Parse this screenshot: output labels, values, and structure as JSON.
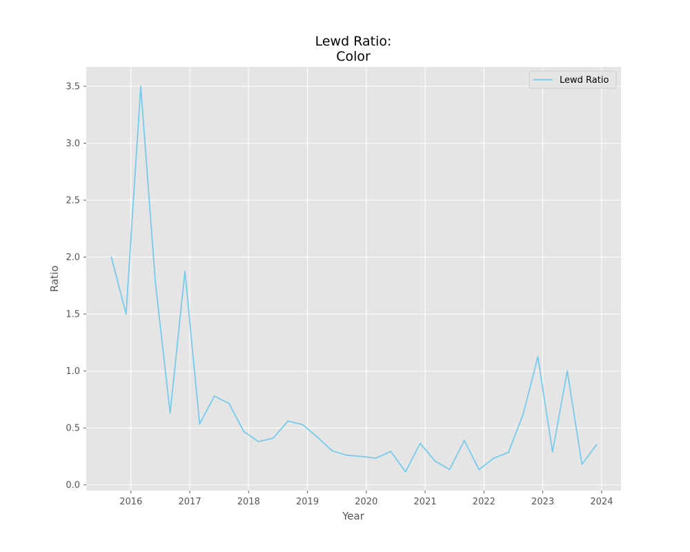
{
  "chart_data": {
    "type": "line",
    "title": "Lewd Ratio:",
    "subtitle": "Color",
    "xlabel": "Year",
    "ylabel": "Ratio",
    "xlim": [
      2015.24,
      2024.33
    ],
    "ylim": [
      -0.05,
      3.67
    ],
    "xticks": [
      "2016",
      "2017",
      "2018",
      "2019",
      "2020",
      "2021",
      "2022",
      "2023",
      "2024"
    ],
    "yticks": [
      "0.0",
      "0.5",
      "1.0",
      "1.5",
      "2.0",
      "2.5",
      "3.0",
      "3.5"
    ],
    "grid": true,
    "legend_position": "top-right",
    "series": [
      {
        "name": "Lewd Ratio",
        "color": "#75CBEC",
        "points": [
          [
            "2015-09",
            2.0
          ],
          [
            "2015-12",
            1.5
          ],
          [
            "2016-03",
            3.5
          ],
          [
            "2016-06",
            1.77
          ],
          [
            "2016-09",
            0.63
          ],
          [
            "2016-12",
            1.875
          ],
          [
            "2017-03",
            0.535
          ],
          [
            "2017-06",
            0.78
          ],
          [
            "2017-09",
            0.715
          ],
          [
            "2017-12",
            0.47
          ],
          [
            "2018-03",
            0.38
          ],
          [
            "2018-06",
            0.41
          ],
          [
            "2018-09",
            0.56
          ],
          [
            "2018-12",
            0.53
          ],
          [
            "2019-03",
            0.42
          ],
          [
            "2019-06",
            0.3
          ],
          [
            "2019-09",
            0.26
          ],
          [
            "2019-12",
            0.25
          ],
          [
            "2020-03",
            0.235
          ],
          [
            "2020-06",
            0.295
          ],
          [
            "2020-09",
            0.115
          ],
          [
            "2020-12",
            0.365
          ],
          [
            "2021-03",
            0.21
          ],
          [
            "2021-06",
            0.135
          ],
          [
            "2021-09",
            0.39
          ],
          [
            "2021-12",
            0.135
          ],
          [
            "2022-03",
            0.235
          ],
          [
            "2022-06",
            0.285
          ],
          [
            "2022-09",
            0.62
          ],
          [
            "2022-12",
            1.125
          ],
          [
            "2023-03",
            0.29
          ],
          [
            "2023-06",
            1.0
          ],
          [
            "2023-09",
            0.18
          ],
          [
            "2023-12",
            0.355
          ]
        ]
      }
    ]
  }
}
